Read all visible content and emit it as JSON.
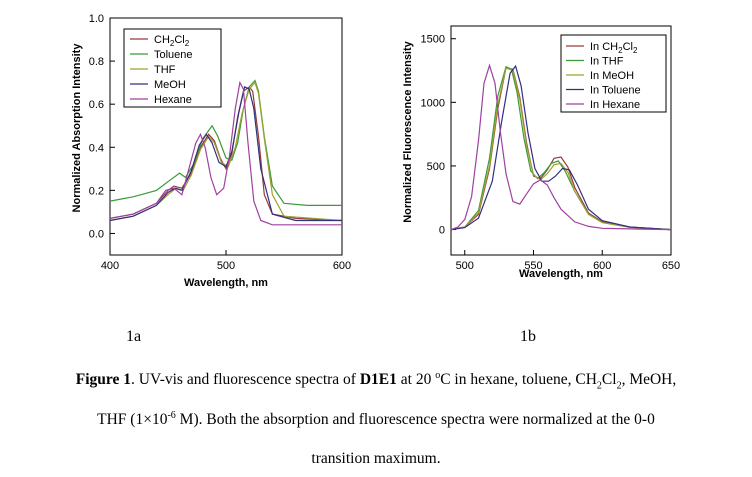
{
  "chart_data": [
    {
      "type": "line",
      "title": "",
      "xlabel": "Wavelength, nm",
      "ylabel": "Normalized Absorption Intensity",
      "xlim": [
        400,
        600
      ],
      "ylim": [
        -0.1,
        1.0
      ],
      "xticks": [
        400,
        500,
        600
      ],
      "xtick_labels": [
        "400",
        "500",
        "600"
      ],
      "yticks": [
        0.0,
        0.2,
        0.4,
        0.6,
        0.8,
        1.0
      ],
      "ytick_labels": [
        "0.0",
        "0.2",
        "0.4",
        "0.6",
        "0.8",
        "1.0"
      ],
      "grid": false,
      "legend_position": "top-left",
      "series": [
        {
          "name": "CH2Cl2",
          "legend_main": "CH",
          "legend_sub1": "2",
          "legend_mid": "Cl",
          "legend_sub2": "2",
          "color": "#9a3a3a",
          "x": [
            400,
            420,
            440,
            450,
            455,
            462,
            470,
            478,
            485,
            490,
            495,
            500,
            505,
            510,
            515,
            520,
            523,
            528,
            533,
            540,
            560,
            600
          ],
          "y": [
            0.07,
            0.09,
            0.14,
            0.2,
            0.22,
            0.21,
            0.28,
            0.4,
            0.46,
            0.43,
            0.35,
            0.3,
            0.37,
            0.54,
            0.66,
            0.68,
            0.66,
            0.45,
            0.18,
            0.09,
            0.07,
            0.06
          ]
        },
        {
          "name": "Toluene",
          "color": "#3a9a3a",
          "x": [
            400,
            420,
            440,
            450,
            460,
            465,
            472,
            480,
            488,
            493,
            500,
            505,
            510,
            515,
            520,
            525,
            528,
            533,
            540,
            550,
            570,
            600
          ],
          "y": [
            0.15,
            0.17,
            0.2,
            0.24,
            0.28,
            0.26,
            0.32,
            0.44,
            0.5,
            0.45,
            0.35,
            0.34,
            0.42,
            0.58,
            0.68,
            0.71,
            0.66,
            0.45,
            0.22,
            0.14,
            0.13,
            0.13
          ]
        },
        {
          "name": "THF",
          "color": "#a0a030",
          "x": [
            400,
            420,
            440,
            450,
            457,
            463,
            470,
            478,
            485,
            490,
            496,
            502,
            508,
            514,
            520,
            525,
            528,
            533,
            540,
            550,
            600
          ],
          "y": [
            0.06,
            0.08,
            0.13,
            0.18,
            0.21,
            0.2,
            0.27,
            0.39,
            0.45,
            0.42,
            0.33,
            0.31,
            0.4,
            0.56,
            0.67,
            0.7,
            0.65,
            0.44,
            0.18,
            0.08,
            0.06
          ]
        },
        {
          "name": "MeOH",
          "color": "#303080",
          "x": [
            400,
            420,
            440,
            450,
            456,
            462,
            470,
            477,
            483,
            488,
            494,
            500,
            505,
            511,
            516,
            520,
            524,
            530,
            540,
            560,
            600
          ],
          "y": [
            0.06,
            0.08,
            0.13,
            0.19,
            0.21,
            0.2,
            0.29,
            0.41,
            0.46,
            0.42,
            0.33,
            0.31,
            0.38,
            0.56,
            0.68,
            0.67,
            0.58,
            0.3,
            0.09,
            0.06,
            0.06
          ]
        },
        {
          "name": "Hexane",
          "color": "#a040a0",
          "x": [
            400,
            420,
            440,
            448,
            455,
            462,
            468,
            474,
            478,
            482,
            487,
            492,
            498,
            503,
            508,
            512,
            515,
            519,
            524,
            530,
            540,
            560,
            600
          ],
          "y": [
            0.07,
            0.09,
            0.14,
            0.2,
            0.21,
            0.18,
            0.3,
            0.42,
            0.46,
            0.4,
            0.26,
            0.18,
            0.21,
            0.36,
            0.58,
            0.7,
            0.67,
            0.42,
            0.15,
            0.06,
            0.04,
            0.04,
            0.04
          ]
        }
      ]
    },
    {
      "type": "line",
      "title": "",
      "xlabel": "Wavelength, nm",
      "ylabel": "Normalized Fluorescence Intensity",
      "xlim": [
        490,
        650
      ],
      "ylim": [
        -200,
        1600
      ],
      "xticks": [
        500,
        550,
        600,
        650
      ],
      "xtick_labels": [
        "500",
        "550",
        "600",
        "650"
      ],
      "yticks": [
        0,
        500,
        1000,
        1500
      ],
      "ytick_labels": [
        "0",
        "500",
        "1000",
        "1500"
      ],
      "grid": false,
      "legend_position": "top-right",
      "series": [
        {
          "name": "In CH2Cl2",
          "legend_main": "In CH",
          "legend_sub1": "2",
          "legend_mid": "Cl",
          "legend_sub2": "2",
          "color": "#9a3a3a",
          "x": [
            490,
            500,
            510,
            518,
            524,
            530,
            535,
            540,
            545,
            550,
            555,
            560,
            565,
            570,
            575,
            580,
            590,
            600,
            620,
            650
          ],
          "y": [
            0,
            20,
            120,
            480,
            950,
            1270,
            1260,
            1040,
            680,
            420,
            400,
            470,
            560,
            570,
            490,
            330,
            130,
            60,
            20,
            0
          ]
        },
        {
          "name": "In THF",
          "color": "#3a9a3a",
          "x": [
            490,
            500,
            510,
            518,
            524,
            530,
            534,
            538,
            543,
            548,
            553,
            558,
            563,
            568,
            573,
            580,
            590,
            600,
            620,
            650
          ],
          "y": [
            0,
            20,
            150,
            560,
            1050,
            1280,
            1260,
            1080,
            720,
            460,
            400,
            450,
            520,
            540,
            460,
            300,
            120,
            55,
            18,
            0
          ]
        },
        {
          "name": "In MeOH",
          "color": "#a0a030",
          "x": [
            490,
            500,
            510,
            518,
            524,
            530,
            535,
            540,
            545,
            550,
            555,
            560,
            565,
            570,
            575,
            580,
            590,
            600,
            620,
            650
          ],
          "y": [
            0,
            20,
            130,
            500,
            980,
            1270,
            1250,
            1020,
            660,
            430,
            390,
            440,
            510,
            520,
            450,
            300,
            120,
            55,
            18,
            0
          ]
        },
        {
          "name": "In Toluene",
          "color": "#303080",
          "x": [
            490,
            500,
            510,
            520,
            527,
            533,
            537,
            541,
            546,
            551,
            556,
            561,
            566,
            571,
            576,
            582,
            590,
            600,
            620,
            650
          ],
          "y": [
            0,
            15,
            90,
            380,
            860,
            1230,
            1285,
            1130,
            760,
            480,
            380,
            380,
            420,
            480,
            470,
            350,
            160,
            70,
            20,
            0
          ]
        },
        {
          "name": "In Hexane",
          "color": "#a040a0",
          "x": [
            490,
            495,
            500,
            505,
            510,
            514,
            518,
            522,
            526,
            530,
            535,
            540,
            545,
            550,
            555,
            560,
            565,
            570,
            580,
            590,
            600,
            620,
            650
          ],
          "y": [
            0,
            20,
            80,
            260,
            700,
            1150,
            1290,
            1150,
            760,
            440,
            220,
            200,
            280,
            360,
            390,
            350,
            250,
            160,
            60,
            25,
            10,
            5,
            0
          ]
        }
      ]
    }
  ],
  "sublabels": {
    "a": "1a",
    "b": "1b"
  },
  "caption": {
    "fig_label": "Figure 1",
    "text1": ". UV-vis and fluorescence spectra of ",
    "compound": "D1E1",
    "text2": " at 20 ",
    "degree": "o",
    "text3": "C in hexane, toluene, CH",
    "sub1": "2",
    "text4": "Cl",
    "sub2": "2",
    "text5": ", MeOH,",
    "line2a": "THF (1×10",
    "exp": "-6",
    "line2b": " M). Both the absorption and fluorescence spectra were normalized at the 0-0",
    "line3": "transition maximum."
  }
}
